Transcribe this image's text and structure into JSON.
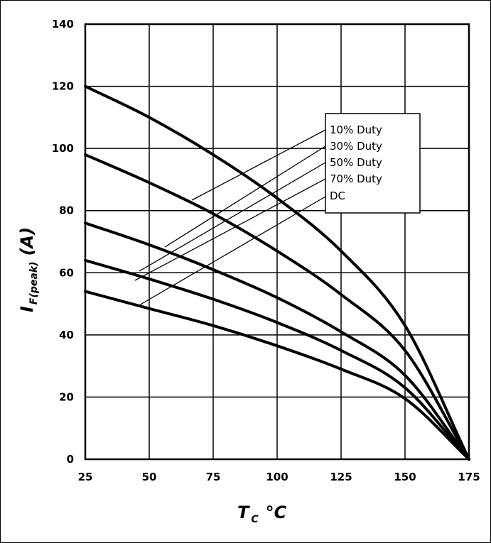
{
  "chart_data": {
    "type": "line",
    "title": "",
    "xlabel": {
      "main": "T",
      "sub": "C",
      "unit": "°C"
    },
    "ylabel": {
      "main": "I",
      "sub": "F(peak)",
      "unit": "(A)"
    },
    "xlim": [
      25,
      175
    ],
    "ylim": [
      0,
      140
    ],
    "x_ticks": [
      25,
      50,
      75,
      100,
      125,
      150,
      175
    ],
    "y_ticks": [
      0,
      20,
      40,
      60,
      80,
      100,
      120,
      140
    ],
    "grid": true,
    "legend_position": "top-right",
    "series": [
      {
        "name": "10% Duty",
        "x": [
          25,
          50,
          75,
          100,
          125,
          150,
          175
        ],
        "y": [
          120,
          110,
          98,
          84,
          67,
          43,
          0
        ]
      },
      {
        "name": "30% Duty",
        "x": [
          25,
          50,
          75,
          100,
          125,
          150,
          175
        ],
        "y": [
          98,
          89,
          79,
          67,
          53,
          35,
          0
        ]
      },
      {
        "name": "50% Duty",
        "x": [
          25,
          50,
          75,
          100,
          125,
          150,
          175
        ],
        "y": [
          76,
          69,
          61,
          52,
          41,
          27,
          0
        ]
      },
      {
        "name": "70% Duty",
        "x": [
          25,
          50,
          75,
          100,
          125,
          150,
          175
        ],
        "y": [
          64,
          58,
          51.5,
          44,
          35,
          23,
          0
        ]
      },
      {
        "name": "DC",
        "x": [
          25,
          50,
          75,
          100,
          125,
          150,
          175
        ],
        "y": [
          54,
          48.5,
          43,
          36.5,
          29,
          19.5,
          0
        ]
      }
    ],
    "legend_entries": [
      "10% Duty",
      "30% Duty",
      "50% Duty",
      "70% Duty",
      "DC"
    ]
  }
}
